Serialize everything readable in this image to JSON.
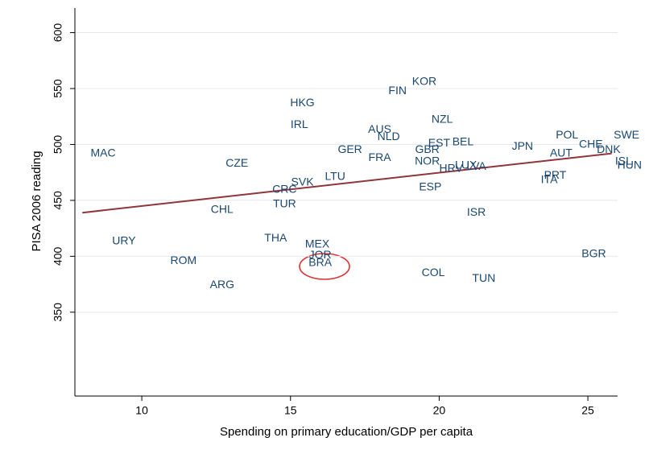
{
  "chart_data": {
    "type": "scatter",
    "x_label": "Spending on primary education/GDP per capita",
    "y_label": "PISA 2006 reading",
    "labels": [
      "MAC",
      "URY",
      "ROM",
      "ARG",
      "CHL",
      "CZE",
      "THA",
      "TUR",
      "CRC",
      "SVK",
      "HKG",
      "IRL",
      "LTU",
      "MEX",
      "JOR",
      "BRA",
      "GER",
      "AUS",
      "NLD",
      "FRA",
      "FIN",
      "KOR",
      "NZL",
      "GBR",
      "NOR",
      "EST",
      "BEL",
      "HRV",
      "LUX",
      "LVA",
      "ESP",
      "COL",
      "ISR",
      "TUN",
      "JPN",
      "POL",
      "AUT",
      "CHE",
      "DNK",
      "SWE",
      "ISL",
      "HUN",
      "ITA",
      "PRT",
      "BGR"
    ],
    "x": [
      8.7,
      9.4,
      11.4,
      12.7,
      12.7,
      13.2,
      14.5,
      14.8,
      14.8,
      15.4,
      15.4,
      15.3,
      16.5,
      15.9,
      16.0,
      16.0,
      17.0,
      18.0,
      18.3,
      18.0,
      18.6,
      19.5,
      20.1,
      19.6,
      19.6,
      20.0,
      20.8,
      20.4,
      20.9,
      21.25,
      19.7,
      19.8,
      21.25,
      21.5,
      22.8,
      24.3,
      24.1,
      25.1,
      25.7,
      26.3,
      26.2,
      26.4,
      23.7,
      23.9,
      25.2
    ],
    "y": [
      492,
      413.5,
      395.6,
      374,
      441.5,
      483,
      416,
      446.5,
      459.4,
      466,
      537,
      517.5,
      471,
      410.6,
      400.6,
      394,
      495,
      513,
      506.7,
      488,
      547.6,
      556,
      522,
      495,
      484.5,
      501,
      502,
      478,
      481,
      480,
      461.6,
      385,
      439,
      380,
      498,
      508,
      491.7,
      499.6,
      495,
      508,
      484.5,
      481,
      468,
      472,
      402
    ],
    "color": "#1a476f",
    "fit_line": {
      "x": [
        8,
        25.8
      ],
      "y": [
        439,
        492
      ],
      "color": "#90353b"
    },
    "xlim": [
      7.75,
      26
    ],
    "ylim": [
      275,
      622
    ],
    "xticks": [
      10,
      15,
      20,
      25
    ],
    "yticks": [
      350,
      400,
      450,
      500,
      550,
      600
    ],
    "grid": true
  }
}
